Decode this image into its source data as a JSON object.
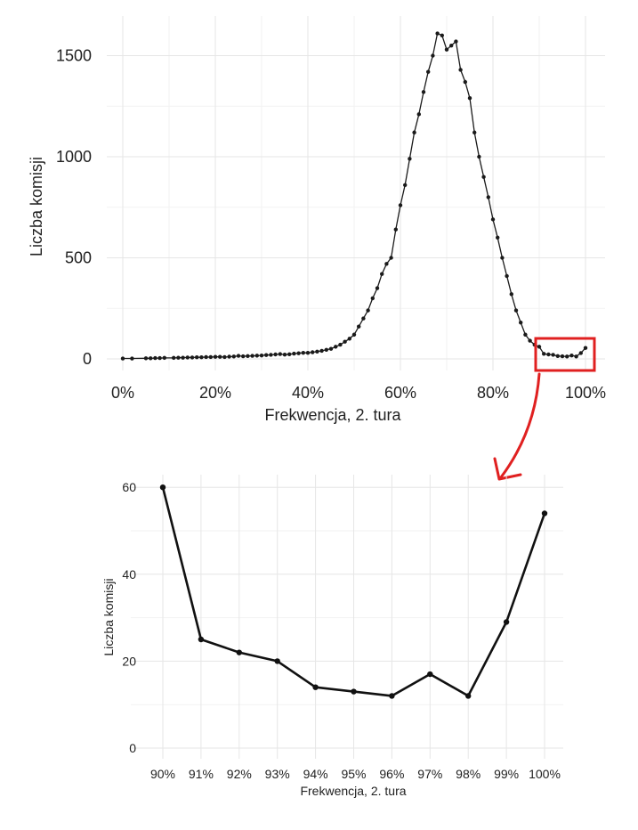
{
  "chart_data": [
    {
      "type": "line",
      "xlabel": "Frekwencja, 2. tura",
      "ylabel": "Liczba komisji",
      "xlim": [
        0,
        100
      ],
      "ylim": [
        0,
        1650
      ],
      "x_ticks": [
        0,
        20,
        40,
        60,
        80,
        100
      ],
      "x_tick_labels": [
        "0%",
        "20%",
        "40%",
        "60%",
        "80%",
        "100%"
      ],
      "y_ticks": [
        0,
        500,
        1000,
        1500
      ],
      "y_tick_labels": [
        "0",
        "500",
        "1000",
        "1500"
      ],
      "grid": true,
      "series": [
        {
          "x": [
            0,
            2,
            5,
            6,
            7,
            8,
            9,
            11,
            12,
            13,
            14,
            15,
            16,
            17,
            18,
            19,
            20,
            21,
            22,
            23,
            24,
            25,
            26,
            27,
            28,
            29,
            30,
            31,
            32,
            33,
            34,
            35,
            36,
            37,
            38,
            39,
            40,
            41,
            42,
            43,
            44,
            45,
            46,
            47,
            48,
            49,
            50,
            51,
            52,
            53,
            54,
            55,
            56,
            57,
            58,
            59,
            60,
            61,
            62,
            63,
            64,
            65,
            66,
            67,
            68,
            69,
            70,
            71,
            72,
            73,
            74,
            75,
            76,
            77,
            78,
            79,
            80,
            81,
            82,
            83,
            84,
            85,
            86,
            87,
            88,
            89,
            90,
            91,
            92,
            93,
            94,
            95,
            96,
            97,
            98,
            99,
            100
          ],
          "values": [
            2,
            2,
            3,
            3,
            4,
            4,
            5,
            5,
            6,
            6,
            7,
            7,
            8,
            8,
            9,
            9,
            10,
            10,
            9,
            11,
            12,
            15,
            13,
            14,
            15,
            16,
            17,
            19,
            20,
            22,
            24,
            21,
            23,
            26,
            28,
            30,
            30,
            33,
            36,
            40,
            45,
            50,
            60,
            70,
            85,
            100,
            120,
            160,
            200,
            240,
            300,
            350,
            420,
            470,
            500,
            640,
            760,
            860,
            990,
            1120,
            1210,
            1320,
            1420,
            1500,
            1610,
            1600,
            1530,
            1550,
            1570,
            1430,
            1370,
            1290,
            1120,
            1000,
            900,
            800,
            690,
            600,
            500,
            410,
            320,
            240,
            180,
            120,
            90,
            70,
            60,
            25,
            22,
            20,
            14,
            13,
            12,
            17,
            12,
            29,
            54
          ]
        }
      ]
    },
    {
      "type": "line",
      "xlabel": "Frekwencja, 2. tura",
      "ylabel": "Liczba komisji",
      "categories": [
        "90%",
        "91%",
        "92%",
        "93%",
        "94%",
        "95%",
        "96%",
        "97%",
        "98%",
        "99%",
        "100%"
      ],
      "ylim": [
        0,
        62
      ],
      "y_ticks": [
        0,
        20,
        40,
        60
      ],
      "y_tick_labels": [
        "0",
        "20",
        "40",
        "60"
      ],
      "grid": true,
      "series": [
        {
          "values": [
            60,
            25,
            22,
            20,
            14,
            13,
            12,
            17,
            12,
            29,
            54
          ]
        }
      ]
    }
  ],
  "annotation": {
    "highlight_color": "#e02020",
    "highlight_range_x": [
      90,
      100
    ],
    "highlight_range_y": [
      0,
      62
    ]
  }
}
